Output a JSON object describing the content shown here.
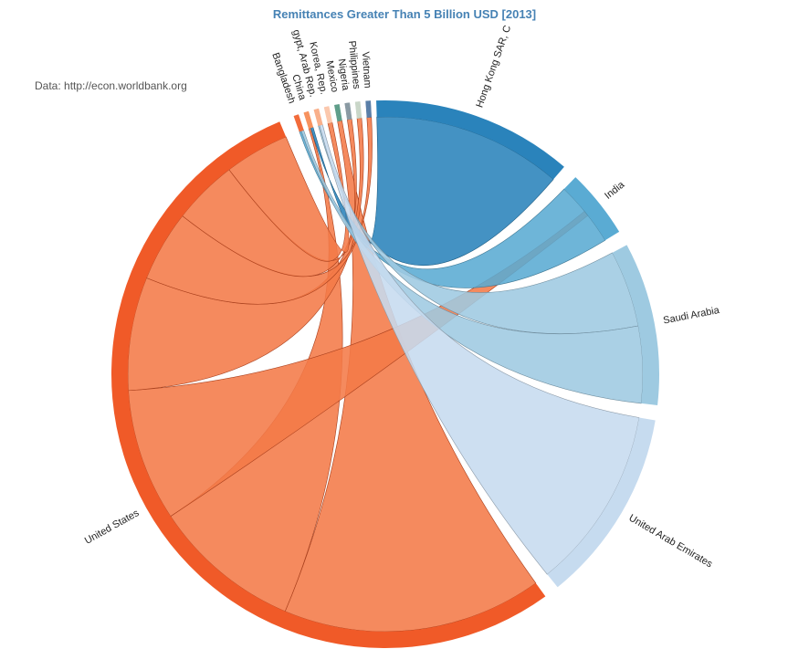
{
  "chart_data": {
    "type": "chord",
    "title": "Remittances Greater Than 5 Billion USD [2013]",
    "source": "Data: http://econ.worldbank.org",
    "groups": [
      {
        "name": "Bangladesh",
        "color": "#f26b3a",
        "small": true
      },
      {
        "name": "China",
        "color": "#f7925e",
        "small": true
      },
      {
        "name": "gypt, Arab Rep.",
        "color": "#f9b08b",
        "small": true
      },
      {
        "name": "Korea, Rep.",
        "color": "#fbc8ad",
        "small": true
      },
      {
        "name": "Mexico",
        "color": "#5f9e8a",
        "small": true
      },
      {
        "name": "Nigeria",
        "color": "#8a9aa3",
        "small": true
      },
      {
        "name": "Philippines",
        "color": "#c9d6c8",
        "small": true
      },
      {
        "name": "Vietnam",
        "color": "#5a7fa8",
        "small": true
      },
      {
        "name": "Hong Kong SAR, C",
        "color": "#2a83bb"
      },
      {
        "name": "India",
        "color": "#5aabd3"
      },
      {
        "name": "Saudi Arabia",
        "color": "#9ecae1"
      },
      {
        "name": "United Arab Emirates",
        "color": "#c6dbef"
      },
      {
        "name": "United States",
        "color": "#f05a28"
      }
    ],
    "flows": [
      {
        "from": "United States",
        "to": "Mexico",
        "value": 22
      },
      {
        "from": "United States",
        "to": "China",
        "value": 12.6
      },
      {
        "from": "United States",
        "to": "India",
        "value": 11.2
      },
      {
        "from": "United States",
        "to": "Philippines",
        "value": 9.6
      },
      {
        "from": "United States",
        "to": "Vietnam",
        "value": 6
      },
      {
        "from": "United States",
        "to": "Nigeria",
        "value": 5.5
      },
      {
        "from": "United States",
        "to": "Korea, Rep.",
        "value": 5.5
      },
      {
        "from": "Hong Kong SAR, C",
        "to": "China",
        "value": 16
      },
      {
        "from": "India",
        "to": "Bangladesh",
        "value": 5.5
      },
      {
        "from": "Saudi Arabia",
        "to": "gypt, Arab Rep.",
        "value": 6.5
      },
      {
        "from": "Saudi Arabia",
        "to": "Bangladesh",
        "value": 6.5
      },
      {
        "from": "United Arab Emirates",
        "to": "gypt, Arab Rep.",
        "value": 15.5
      }
    ]
  }
}
